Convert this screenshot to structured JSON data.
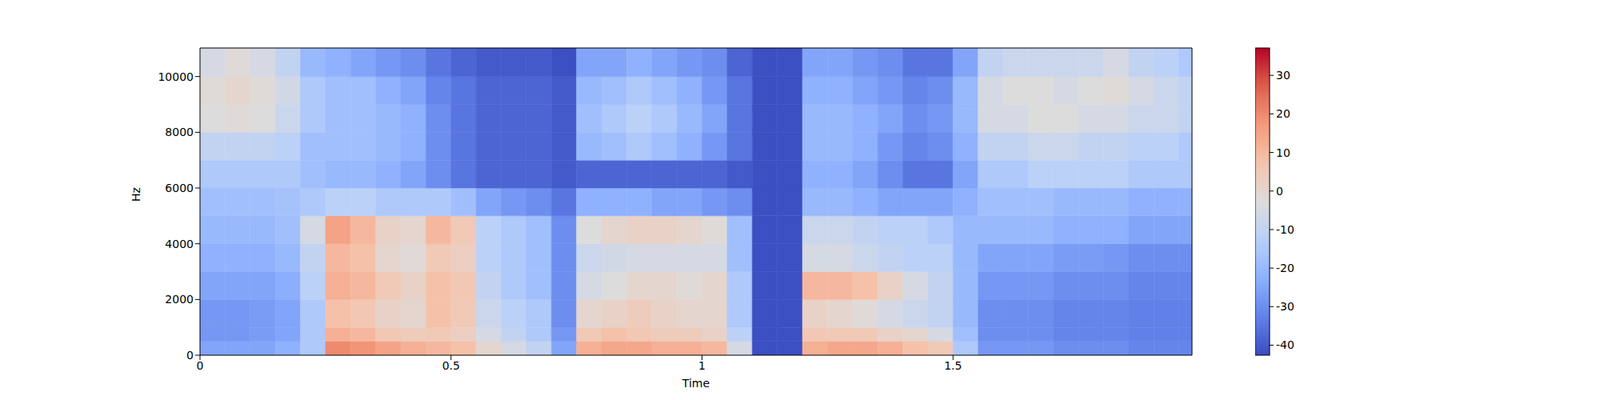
{
  "chart_data": {
    "type": "heatmap",
    "xlabel": "Time",
    "ylabel": "Hz",
    "xlim": [
      0,
      1.976
    ],
    "xticks": [
      0,
      0.5,
      1,
      1.5
    ],
    "ylim": [
      0,
      11025
    ],
    "yticks": [
      0,
      2000,
      4000,
      6000,
      8000,
      10000
    ],
    "x_edges": [
      0,
      0.05,
      0.1,
      0.15,
      0.2,
      0.25,
      0.3,
      0.35,
      0.4,
      0.45,
      0.5,
      0.55,
      0.6,
      0.65,
      0.7,
      0.75,
      0.8,
      0.85,
      0.9,
      0.95,
      1.0,
      1.05,
      1.1,
      1.15,
      1.2,
      1.25,
      1.3,
      1.35,
      1.4,
      1.45,
      1.5,
      1.55,
      1.6,
      1.65,
      1.7,
      1.75,
      1.8,
      1.85,
      1.9,
      1.95,
      1.976
    ],
    "y_edges": [
      0,
      500,
      1000,
      2000,
      3000,
      4000,
      5000,
      6000,
      7000,
      8000,
      9000,
      10000,
      11025
    ],
    "cells": [
      [
        -25,
        -25,
        -25,
        -22,
        -15,
        20,
        18,
        15,
        12,
        10,
        8,
        0,
        -5,
        -10,
        -25,
        12,
        14,
        14,
        12,
        12,
        10,
        -5,
        -42,
        -42,
        12,
        14,
        14,
        12,
        8,
        5,
        -15,
        -28,
        -28,
        -28,
        -30,
        -30,
        -30,
        -32,
        -32,
        -32
      ],
      [
        -28,
        -28,
        -27,
        -25,
        -15,
        12,
        10,
        6,
        4,
        5,
        3,
        -5,
        -10,
        -15,
        -28,
        5,
        8,
        6,
        4,
        4,
        2,
        -12,
        -42,
        -42,
        6,
        5,
        5,
        2,
        0,
        -5,
        -18,
        -30,
        -30,
        -30,
        -32,
        -32,
        -32,
        -33,
        -33,
        -33
      ],
      [
        -28,
        -28,
        -27,
        -25,
        -15,
        8,
        6,
        2,
        0,
        8,
        5,
        -8,
        -12,
        -15,
        -30,
        0,
        2,
        4,
        2,
        0,
        0,
        -15,
        -42,
        -42,
        2,
        0,
        -2,
        -5,
        -8,
        -10,
        -20,
        -30,
        -30,
        -30,
        -32,
        -32,
        -32,
        -33,
        -33,
        -33
      ],
      [
        -25,
        -25,
        -25,
        -23,
        -12,
        12,
        10,
        5,
        2,
        8,
        6,
        -10,
        -15,
        -18,
        -30,
        -5,
        -3,
        0,
        0,
        -2,
        0,
        -15,
        -42,
        -42,
        10,
        10,
        8,
        2,
        -5,
        -10,
        -20,
        -28,
        -28,
        -28,
        -30,
        -30,
        -30,
        -32,
        -32,
        -32
      ],
      [
        -22,
        -22,
        -22,
        -20,
        -10,
        10,
        8,
        0,
        -2,
        5,
        3,
        -12,
        -15,
        -18,
        -30,
        -8,
        -6,
        -5,
        -5,
        -5,
        -5,
        -18,
        -42,
        -42,
        -5,
        -5,
        -8,
        -10,
        -12,
        -12,
        -20,
        -25,
        -25,
        -25,
        -27,
        -27,
        -28,
        -30,
        -30,
        -30
      ],
      [
        -20,
        -20,
        -20,
        -18,
        -5,
        15,
        10,
        2,
        0,
        10,
        5,
        -12,
        -15,
        -18,
        -30,
        -3,
        0,
        2,
        2,
        0,
        -2,
        -18,
        -42,
        -42,
        -8,
        -8,
        -10,
        -12,
        -12,
        -15,
        -20,
        -20,
        -20,
        -20,
        -22,
        -22,
        -22,
        -25,
        -25,
        -25
      ],
      [
        -18,
        -18,
        -18,
        -17,
        -15,
        -12,
        -12,
        -15,
        -15,
        -15,
        -18,
        -25,
        -28,
        -30,
        -35,
        -22,
        -22,
        -22,
        -25,
        -25,
        -28,
        -30,
        -42,
        -42,
        -20,
        -20,
        -22,
        -25,
        -25,
        -25,
        -22,
        -18,
        -18,
        -18,
        -20,
        -20,
        -20,
        -22,
        -22,
        -22
      ],
      [
        -15,
        -15,
        -15,
        -15,
        -18,
        -20,
        -20,
        -22,
        -25,
        -30,
        -35,
        -38,
        -38,
        -38,
        -40,
        -38,
        -38,
        -38,
        -38,
        -38,
        -38,
        -40,
        -42,
        -42,
        -22,
        -22,
        -25,
        -30,
        -35,
        -35,
        -25,
        -15,
        -15,
        -12,
        -12,
        -12,
        -12,
        -15,
        -15,
        -15
      ],
      [
        -10,
        -10,
        -10,
        -12,
        -18,
        -18,
        -18,
        -20,
        -22,
        -30,
        -35,
        -38,
        -38,
        -38,
        -40,
        -20,
        -18,
        -15,
        -18,
        -22,
        -28,
        -35,
        -42,
        -42,
        -20,
        -20,
        -22,
        -28,
        -32,
        -30,
        -22,
        -10,
        -10,
        -8,
        -8,
        -10,
        -10,
        -12,
        -12,
        -15
      ],
      [
        -3,
        -2,
        -3,
        -8,
        -15,
        -18,
        -18,
        -20,
        -22,
        -30,
        -35,
        -38,
        -38,
        -38,
        -40,
        -18,
        -15,
        -12,
        -15,
        -20,
        -25,
        -35,
        -42,
        -42,
        -20,
        -20,
        -22,
        -25,
        -30,
        -28,
        -20,
        -5,
        -5,
        -3,
        -3,
        -5,
        -5,
        -8,
        -8,
        -10
      ],
      [
        -2,
        0,
        -2,
        -6,
        -15,
        -18,
        -18,
        -22,
        -25,
        -32,
        -35,
        -38,
        -38,
        -38,
        -40,
        -20,
        -18,
        -15,
        -18,
        -22,
        -28,
        -35,
        -42,
        -42,
        -22,
        -22,
        -25,
        -28,
        -32,
        -30,
        -20,
        -5,
        -3,
        -3,
        -5,
        -3,
        -2,
        -5,
        -8,
        -10
      ],
      [
        -5,
        -2,
        -5,
        -10,
        -20,
        -22,
        -25,
        -28,
        -30,
        -35,
        -38,
        -40,
        -40,
        -40,
        -42,
        -25,
        -25,
        -22,
        -25,
        -28,
        -30,
        -38,
        -42,
        -42,
        -25,
        -25,
        -28,
        -30,
        -35,
        -35,
        -25,
        -10,
        -8,
        -8,
        -8,
        -8,
        -5,
        -10,
        -12,
        -15
      ]
    ],
    "colorbar": {
      "range": [
        -42.6,
        37.1
      ],
      "ticks": [
        -40,
        -30,
        -20,
        -10,
        0,
        10,
        20,
        30
      ]
    }
  }
}
